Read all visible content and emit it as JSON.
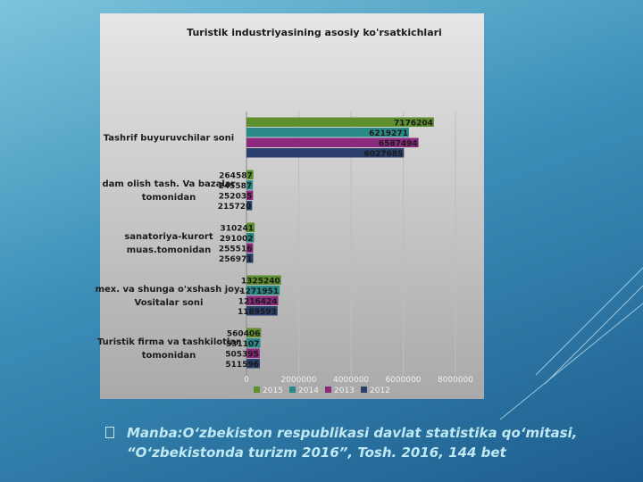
{
  "chart_data": {
    "type": "hbar",
    "title": "Turistik industriyasining asosiy ko'rsatkichlari",
    "categories": [
      "Tashrif buyuruvchilar soni",
      "dam olish tash. Va bazalar tomonidan",
      "sanatoriya-kurort muas.tomonidan",
      "mex. va shunga o'xshash joy. Vositalar soni",
      "Turistik firma va tashkilotlar tomonidan"
    ],
    "series": [
      {
        "name": "2015",
        "color": "#5e8f2e",
        "values": [
          7176204,
          264587,
          310241,
          1325240,
          560406
        ]
      },
      {
        "name": "2014",
        "color": "#2a8a88",
        "values": [
          6219271,
          245587,
          291002,
          1271951,
          531107
        ]
      },
      {
        "name": "2013",
        "color": "#8b2a7c",
        "values": [
          6587494,
          252035,
          255516,
          1216424,
          505395
        ]
      },
      {
        "name": "2012",
        "color": "#2a3f6b",
        "values": [
          6027685,
          215720,
          256971,
          1189593,
          511596
        ]
      }
    ],
    "xlim": [
      0,
      8000000
    ],
    "xticks": [
      0,
      2000000,
      4000000,
      6000000,
      8000000
    ],
    "grid": true,
    "legend": "bottom"
  },
  "source": "Manba:O‘zbekiston respublikasi davlat statistika qo‘mitasi, “O‘zbekistonda turizm 2016”, Tosh. 2016, 144 bet"
}
